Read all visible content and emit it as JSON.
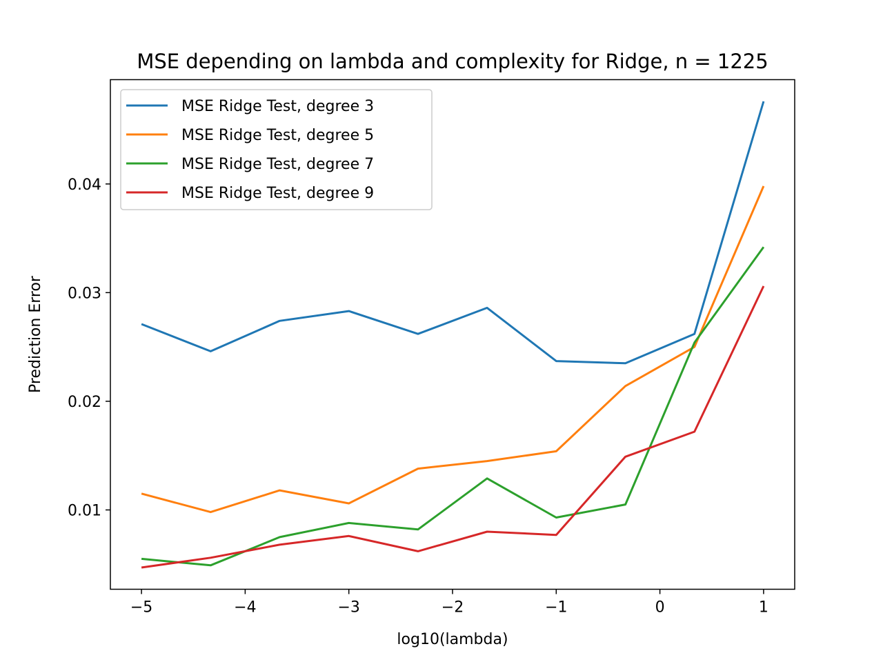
{
  "chart_data": {
    "type": "line",
    "title": "MSE depending on lambda and complexity for Ridge, n = 1225",
    "xlabel": "log10(lambda)",
    "ylabel": "Prediction Error",
    "xlim": [
      -5.3,
      1.3
    ],
    "ylim": [
      0.0027,
      0.0496
    ],
    "xticks": [
      -5,
      -4,
      -3,
      -2,
      -1,
      0,
      1
    ],
    "xtick_labels": [
      "−5",
      "−4",
      "−3",
      "−2",
      "−1",
      "0",
      "1"
    ],
    "yticks": [
      0.01,
      0.02,
      0.03,
      0.04
    ],
    "ytick_labels": [
      "0.01",
      "0.02",
      "0.03",
      "0.04"
    ],
    "grid": false,
    "legend_position": "top-left",
    "x": [
      -5,
      -4.333,
      -3.667,
      -3,
      -2.333,
      -1.667,
      -1,
      -0.333,
      0.333,
      1
    ],
    "series": [
      {
        "name": "MSE Ridge Test, degree 3",
        "color": "#1f77b4",
        "values": [
          0.0271,
          0.0246,
          0.0274,
          0.0283,
          0.0262,
          0.0286,
          0.0237,
          0.0235,
          0.0262,
          0.0476
        ]
      },
      {
        "name": "MSE Ridge Test, degree 5",
        "color": "#ff7f0e",
        "values": [
          0.0115,
          0.0098,
          0.0118,
          0.0106,
          0.0138,
          0.0145,
          0.0154,
          0.0214,
          0.025,
          0.0398
        ]
      },
      {
        "name": "MSE Ridge Test, degree 7",
        "color": "#2ca02c",
        "values": [
          0.0055,
          0.0049,
          0.0075,
          0.0088,
          0.0082,
          0.0129,
          0.0093,
          0.0105,
          0.0254,
          0.0342
        ]
      },
      {
        "name": "MSE Ridge Test, degree 9",
        "color": "#d62728",
        "values": [
          0.0047,
          0.0056,
          0.0068,
          0.0076,
          0.0062,
          0.008,
          0.0077,
          0.0149,
          0.0172,
          0.0306
        ]
      }
    ]
  }
}
